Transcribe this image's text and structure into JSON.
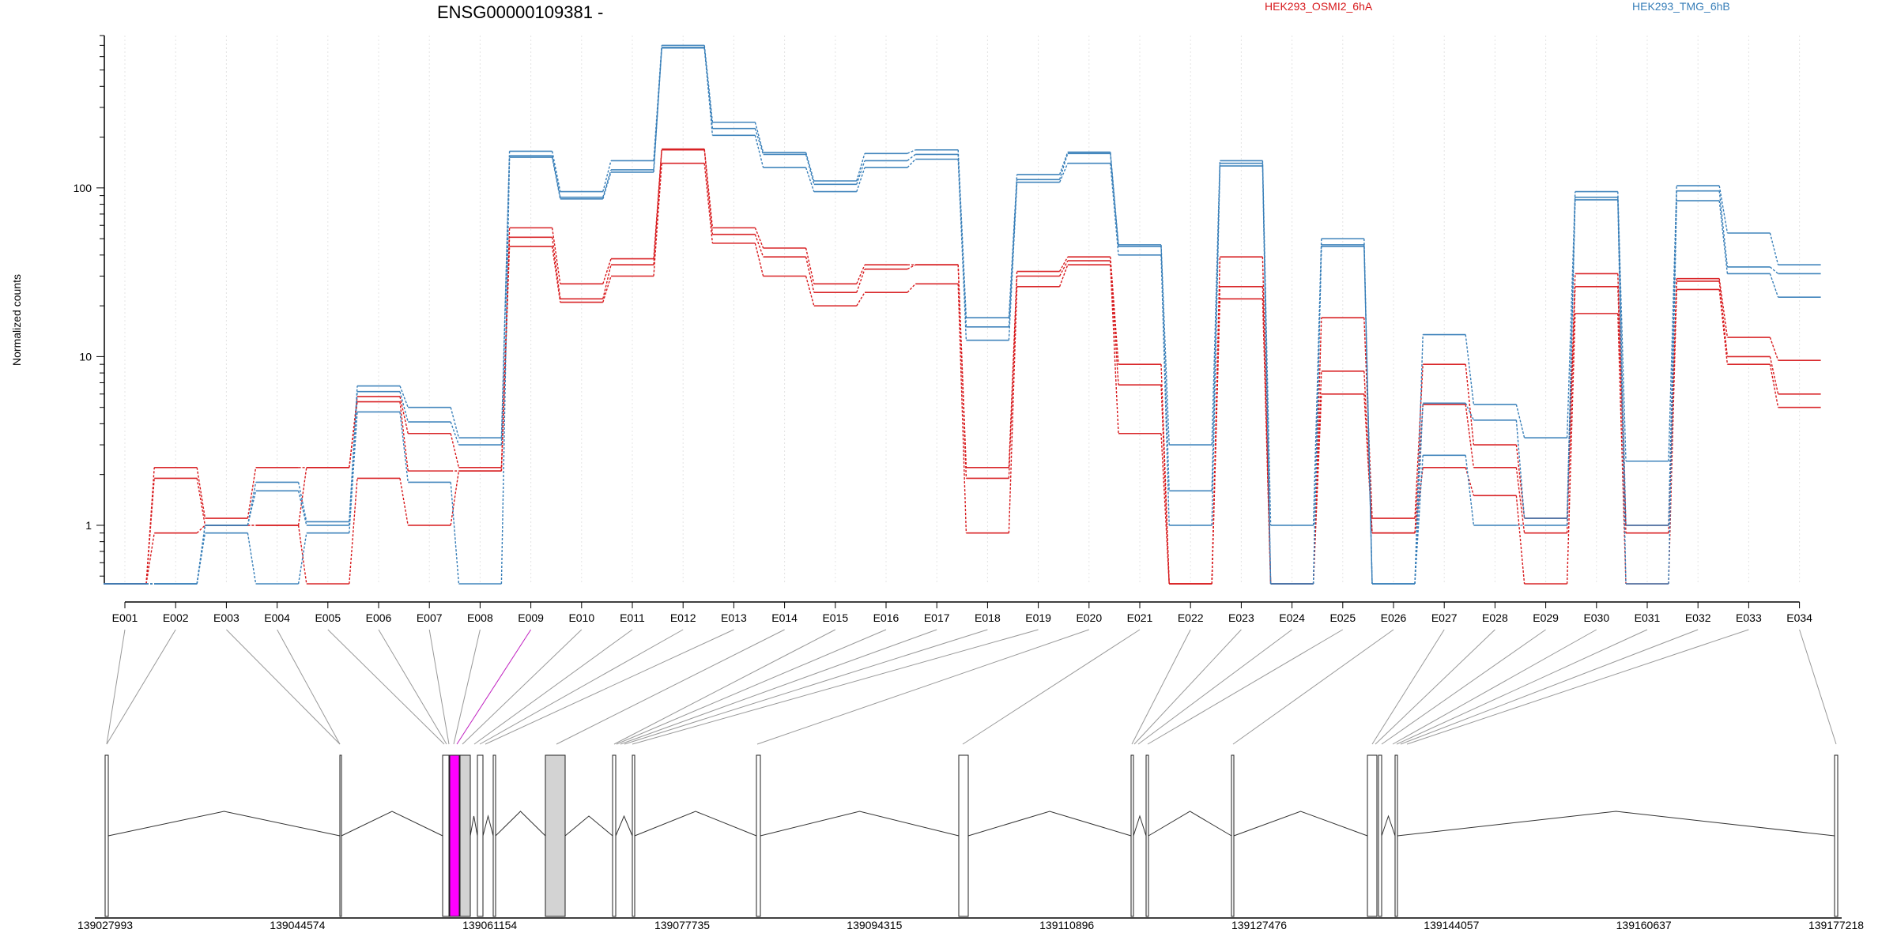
{
  "chart_data": {
    "type": "line",
    "title": "ENSG00000109381 -",
    "ylabel": "Normalized counts",
    "y_scale": "log",
    "ylim": [
      0.45,
      800
    ],
    "y_ticks": [
      1,
      10,
      100
    ],
    "y_tick_labels": [
      "1",
      "10",
      "100"
    ],
    "grid": "vertical dotted",
    "legend_placement": "top",
    "categories": [
      "E001",
      "E002",
      "E003",
      "E004",
      "E005",
      "E006",
      "E007",
      "E008",
      "E009",
      "E010",
      "E011",
      "E012",
      "E013",
      "E014",
      "E015",
      "E016",
      "E017",
      "E018",
      "E019",
      "E020",
      "E021",
      "E022",
      "E023",
      "E024",
      "E025",
      "E026",
      "E027",
      "E028",
      "E029",
      "E030",
      "E031",
      "E032",
      "E033",
      "E034"
    ],
    "groups": [
      {
        "name": "HEK293_OSMI2_6hA",
        "color": "#d7191c"
      },
      {
        "name": "HEK293_TMG_6hB",
        "color": "#377eb8"
      }
    ],
    "series": [
      {
        "group": 0,
        "values": [
          0.45,
          2.2,
          1.1,
          2.2,
          2.2,
          5.8,
          3.5,
          2.2,
          58,
          27,
          38,
          170,
          58,
          44,
          27,
          35,
          35,
          2.2,
          32,
          39,
          9,
          0.45,
          39,
          0.45,
          17,
          1.1,
          9,
          3,
          1.1,
          31,
          1.0,
          29,
          13,
          9.5
        ]
      },
      {
        "group": 0,
        "values": [
          0.45,
          1.9,
          1.0,
          1.0,
          2.2,
          5.4,
          2.1,
          2.1,
          51,
          22,
          35,
          168,
          53,
          39,
          24,
          33,
          35,
          1.9,
          30,
          37,
          6.8,
          0.45,
          26,
          0.45,
          8.2,
          0.9,
          5.2,
          2.2,
          0.9,
          26,
          0.9,
          28,
          10,
          6
        ]
      },
      {
        "group": 0,
        "values": [
          0.45,
          0.9,
          1.0,
          1.0,
          0.45,
          1.9,
          1.0,
          2.1,
          45,
          21,
          30,
          140,
          47,
          30,
          20,
          24,
          27,
          0.9,
          26,
          35,
          3.5,
          0.45,
          22,
          0.45,
          6,
          0.9,
          2.2,
          1.5,
          0.45,
          18,
          0.45,
          25,
          9,
          5
        ]
      },
      {
        "group": 1,
        "values": [
          0.45,
          0.45,
          1.0,
          1.8,
          1.05,
          6.7,
          5.0,
          3.3,
          165,
          95,
          145,
          700,
          245,
          162,
          110,
          160,
          168,
          17,
          120,
          163,
          46,
          3,
          145,
          1.0,
          50,
          0.45,
          13.5,
          5.2,
          3.3,
          95,
          2.4,
          103,
          54,
          35
        ]
      },
      {
        "group": 1,
        "values": [
          0.45,
          0.45,
          1.0,
          1.6,
          1.0,
          6.2,
          4.1,
          3.0,
          155,
          88,
          128,
          680,
          225,
          158,
          105,
          145,
          158,
          15,
          112,
          160,
          45,
          1.6,
          140,
          0.45,
          46,
          0.45,
          5.3,
          4.2,
          1.1,
          88,
          1.0,
          96,
          34,
          31
        ]
      },
      {
        "group": 1,
        "values": [
          0.45,
          0.45,
          0.9,
          0.45,
          0.9,
          4.7,
          1.8,
          0.45,
          152,
          86,
          124,
          675,
          205,
          132,
          95,
          132,
          148,
          12.5,
          108,
          140,
          40,
          1.0,
          135,
          0.45,
          45,
          0.45,
          2.6,
          1.0,
          1.0,
          85,
          0.45,
          84,
          31,
          22.5
        ]
      }
    ],
    "coordinate_labels": [
      "139027993",
      "139044574",
      "139061154",
      "139077735",
      "139094315",
      "139110896",
      "139127476",
      "139144057",
      "139160637",
      "139177218"
    ],
    "highlighted_exon": "E009"
  }
}
